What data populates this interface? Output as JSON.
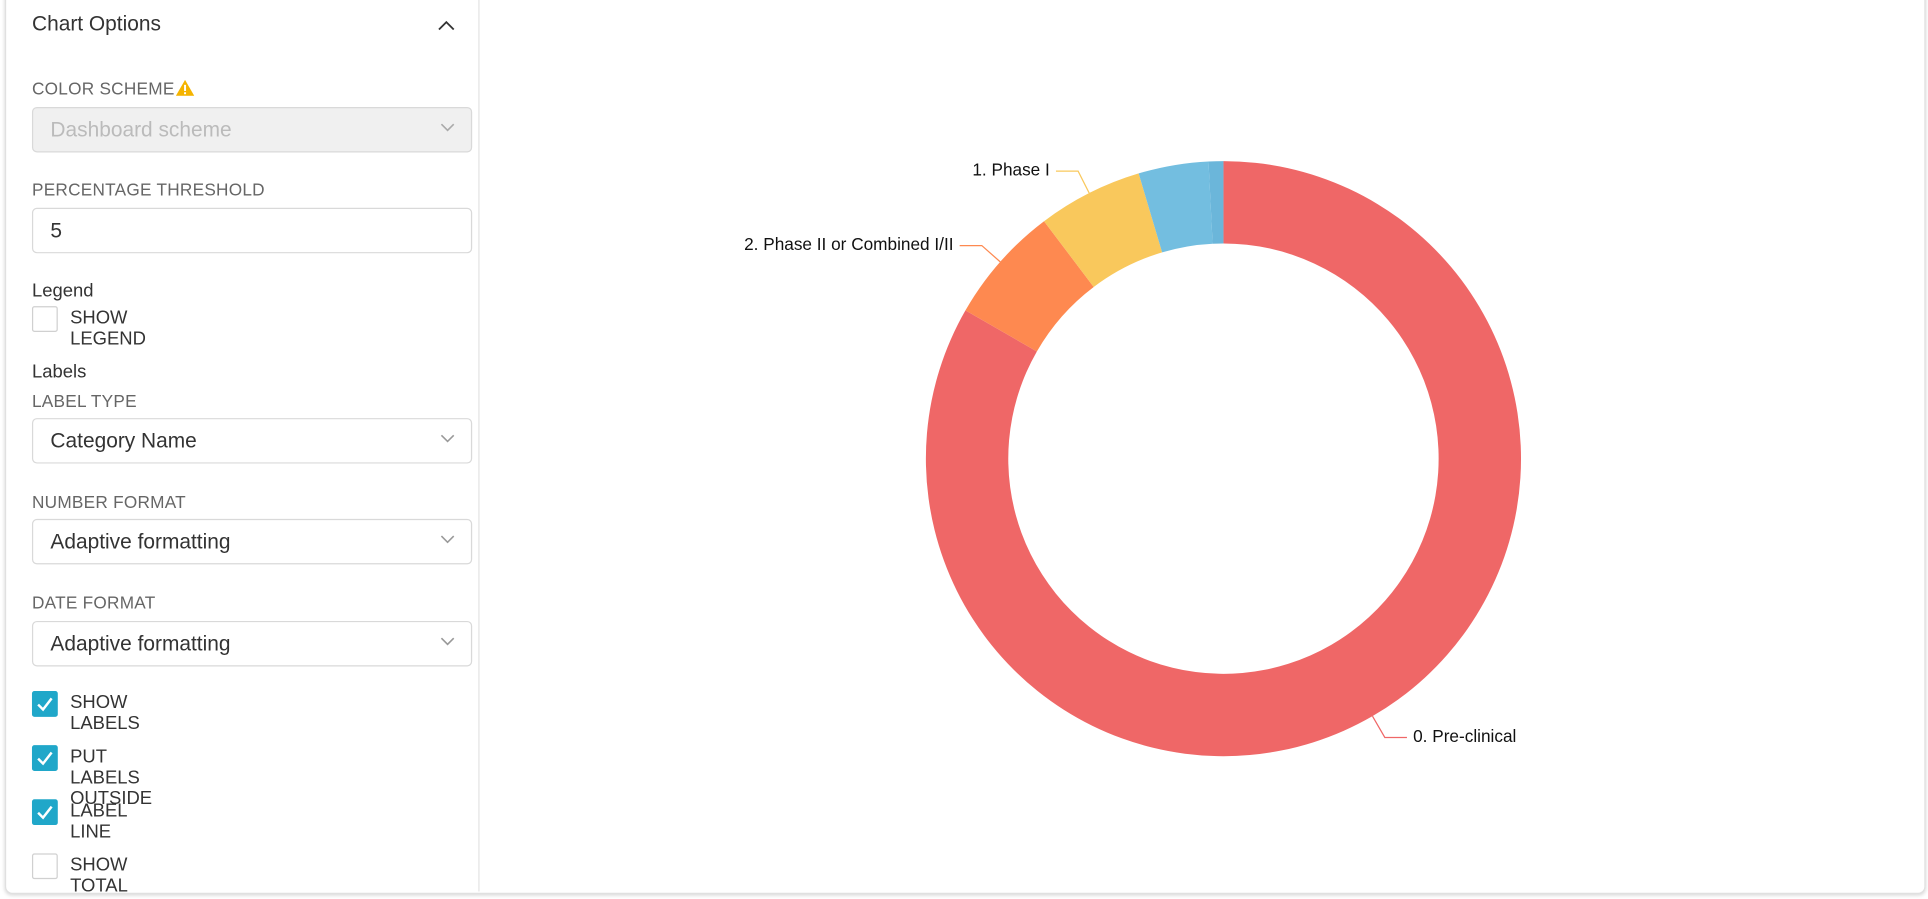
{
  "panel": {
    "title": "Chart Options",
    "color_scheme": {
      "label": "COLOR SCHEME",
      "value": "Dashboard scheme"
    },
    "percentage_threshold": {
      "label": "PERCENTAGE THRESHOLD",
      "value": "5"
    },
    "legend": {
      "heading": "Legend",
      "checkbox": {
        "label": "SHOW LEGEND",
        "checked": false
      }
    },
    "labels": {
      "heading": "Labels"
    },
    "label_type": {
      "label": "LABEL TYPE",
      "value": "Category Name"
    },
    "number_format": {
      "label": "NUMBER FORMAT",
      "value": "Adaptive formatting"
    },
    "date_format": {
      "label": "DATE FORMAT",
      "value": "Adaptive formatting"
    },
    "checkboxes": [
      {
        "label": "SHOW LABELS",
        "checked": true
      },
      {
        "label": "PUT LABELS OUTSIDE",
        "checked": true
      },
      {
        "label": "LABEL LINE",
        "checked": true
      },
      {
        "label": "SHOW TOTAL",
        "checked": false
      }
    ]
  },
  "chart_data": {
    "type": "donut",
    "categories": [
      "0. Pre-clinical",
      "2. Phase II or Combined I/II",
      "1. Phase I",
      null,
      null
    ],
    "values": [
      83.3,
      6.4,
      5.7,
      3.8,
      0.8
    ],
    "colors": [
      "#ef6767",
      "#fe8950",
      "#f9c85c",
      "#73bee0",
      "#6bb6da"
    ]
  }
}
